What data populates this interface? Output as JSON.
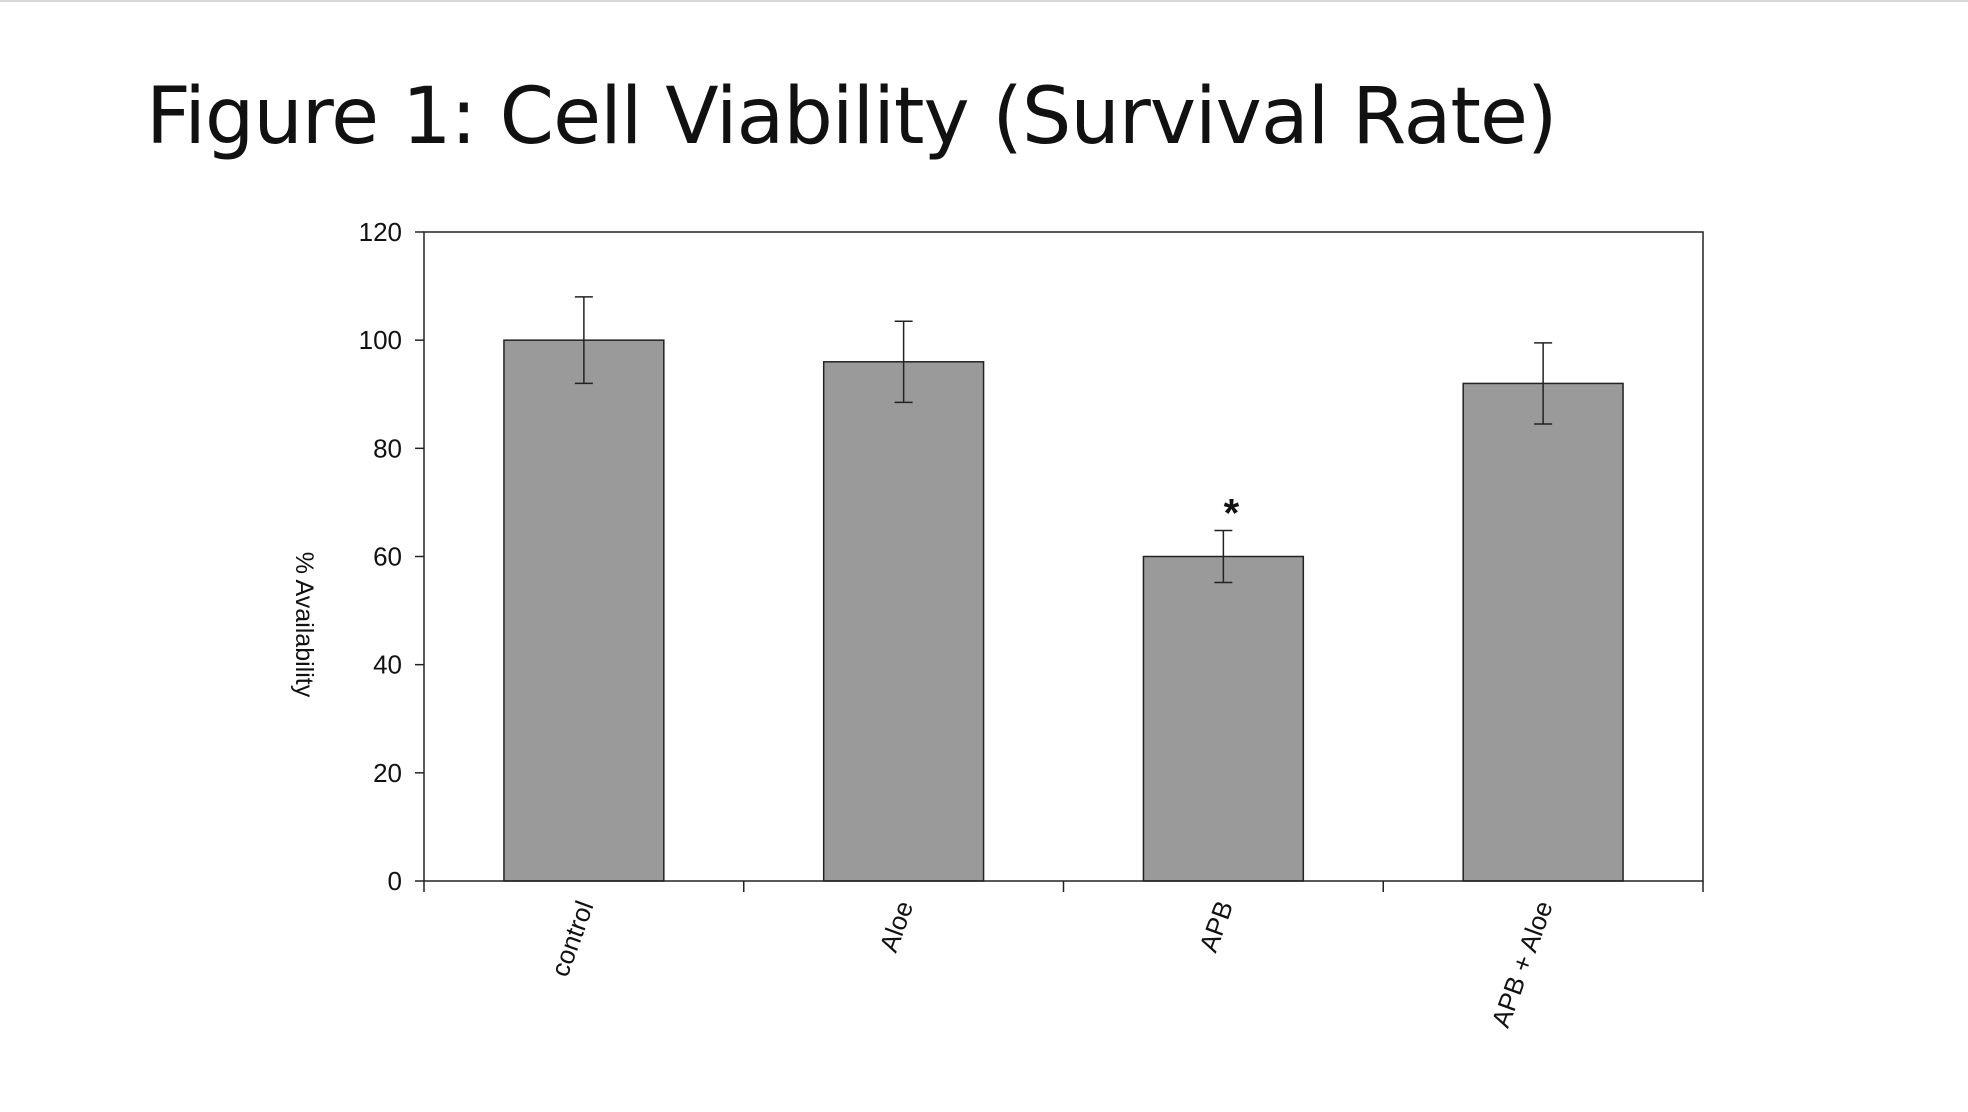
{
  "page": {
    "title": "Figure 1: Cell Viability (Survival Rate)"
  },
  "chart_data": {
    "type": "bar",
    "title": "Figure 1: Cell Viability (Survival Rate)",
    "xlabel": "",
    "ylabel": "% Availability",
    "categories": [
      "control",
      "Aloe",
      "APB",
      "APB + Aloe"
    ],
    "values": [
      100,
      96,
      60,
      92
    ],
    "error_bars": [
      8,
      7.5,
      4.8,
      7.5
    ],
    "annotations": [
      {
        "category": "APB",
        "text": "*"
      }
    ],
    "ylim": [
      0,
      120
    ],
    "yticks": [
      0,
      20,
      40,
      60,
      80,
      100,
      120
    ],
    "grid": false,
    "legend": "none",
    "colors": {
      "bar_fill": "#9a9a9a",
      "bar_stroke": "#222222",
      "axis": "#222222",
      "text": "#111111"
    }
  }
}
